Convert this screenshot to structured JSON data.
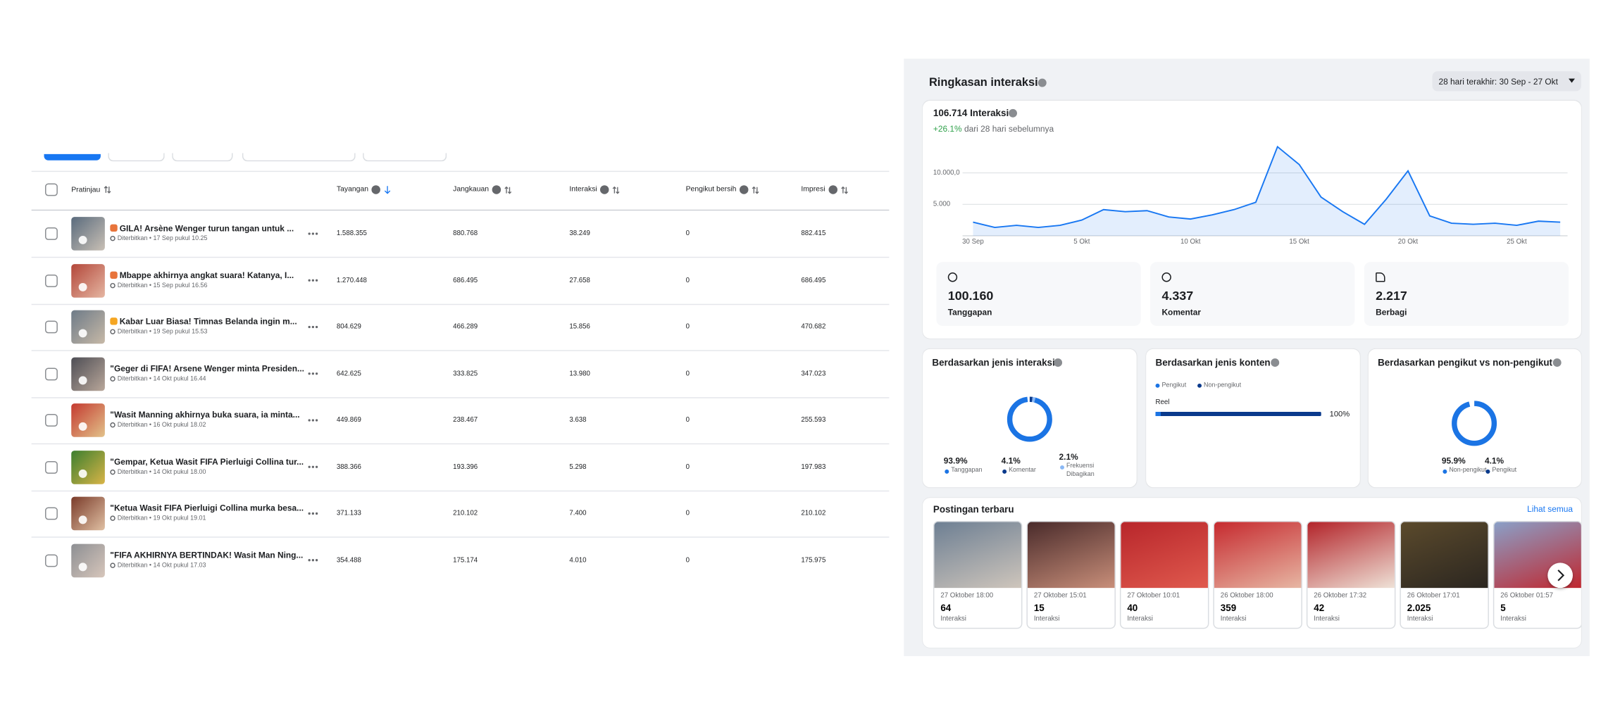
{
  "table": {
    "columns": [
      "Pratinjau",
      "Tayangan",
      "Jangkauan",
      "Interaksi",
      "Pengikut bersih",
      "Impresi"
    ],
    "rows": [
      {
        "title": "GILA! Arsène Wenger turun tangan untuk ...",
        "published": "Diterbitkan • 17 Sep pukul 10.25",
        "values": [
          "1.588.355",
          "880.768",
          "38.249",
          "0",
          "882.415"
        ]
      },
      {
        "title": "Mbappe akhirnya angkat suara! Katanya, I...",
        "published": "Diterbitkan • 15 Sep pukul 16.56",
        "values": [
          "1.270.448",
          "686.495",
          "27.658",
          "0",
          "686.495"
        ]
      },
      {
        "title": "Kabar Luar Biasa! Timnas Belanda ingin m...",
        "published": "Diterbitkan • 19 Sep pukul 15.53",
        "values": [
          "804.629",
          "466.289",
          "15.856",
          "0",
          "470.682"
        ]
      },
      {
        "title": "\"Geger di FIFA! Arsene Wenger minta Presiden...",
        "published": "Diterbitkan • 14 Okt pukul 16.44",
        "values": [
          "642.625",
          "333.825",
          "13.980",
          "0",
          "347.023"
        ]
      },
      {
        "title": "\"Wasit Manning akhirnya buka suara, ia minta...",
        "published": "Diterbitkan • 16 Okt pukul 18.02",
        "values": [
          "449.869",
          "238.467",
          "3.638",
          "0",
          "255.593"
        ]
      },
      {
        "title": "\"Gempar, Ketua Wasit FIFA Pierluigi Collina tur...",
        "published": "Diterbitkan • 14 Okt pukul 18.00",
        "values": [
          "388.366",
          "193.396",
          "5.298",
          "0",
          "197.983"
        ]
      },
      {
        "title": "\"Ketua Wasit FIFA Pierluigi Collina murka besa...",
        "published": "Diterbitkan • 19 Okt pukul 19.01",
        "values": [
          "371.133",
          "210.102",
          "7.400",
          "0",
          "210.102"
        ]
      },
      {
        "title": "\"FIFA AKHIRNYA BERTINDAK! Wasit Man Ning...",
        "published": "Diterbitkan • 14 Okt pukul 17.03",
        "values": [
          "354.488",
          "175.174",
          "4.010",
          "0",
          "175.975"
        ]
      }
    ]
  },
  "summary": {
    "title": "Ringkasan interaksi",
    "date_range": "28 hari terakhir: 30 Sep - 27 Okt",
    "total": "106.714 Interaksi",
    "change": "+26.1%",
    "change_note": "dari 28 hari sebelumnya",
    "chart": {
      "type": "line",
      "color": "#1877f2",
      "categories": [
        "30 Sep",
        null,
        null,
        null,
        null,
        "5 Okt",
        null,
        null,
        null,
        null,
        "10 Okt",
        null,
        null,
        null,
        null,
        "15 Okt",
        null,
        null,
        null,
        null,
        "20 Okt",
        null,
        null,
        null,
        null,
        "25 Okt",
        null,
        null
      ],
      "values": [
        2167,
        1333,
        1667,
        1333,
        1667,
        2500,
        4167,
        3833,
        4000,
        3000,
        2667,
        3333,
        4167,
        5333,
        14167,
        11333,
        6167,
        3833,
        1833,
        5833,
        10333,
        3167,
        2000,
        1833,
        2000,
        1667,
        2333,
        2167
      ],
      "ylim": [
        0,
        15000
      ],
      "yticks": [
        {
          "value": 5000,
          "label": "5.000"
        },
        {
          "value": 10000,
          "label": "10.000,0"
        }
      ],
      "grid": true
    },
    "stats": [
      {
        "value": "100.160",
        "label": "Tanggapan"
      },
      {
        "value": "4.337",
        "label": "Komentar"
      },
      {
        "value": "2.217",
        "label": "Berbagi"
      }
    ]
  },
  "breakdowns": [
    {
      "title": "Berdasarkan jenis interaksi",
      "segments": [
        {
          "value": 93.9,
          "label": "93.9%",
          "name": "Tanggapan",
          "color": "#1b74e4"
        },
        {
          "value": 4.1,
          "label": "4.1%",
          "name": "Komentar",
          "color": "#0a3a8c"
        },
        {
          "value": 2.1,
          "label": "2.1%",
          "name": "Frekuensi Dibagikan",
          "color": "#8ab8f5"
        }
      ]
    },
    {
      "title": "Berdasarkan jenis konten",
      "legend": [
        {
          "name": "Pengikut",
          "color": "#1b74e4"
        },
        {
          "name": "Non-pengikut",
          "color": "#0a3a8c"
        }
      ],
      "bars": [
        {
          "name": "Reel",
          "value": 100,
          "label": "100%",
          "color": "#0a3a8c"
        }
      ]
    },
    {
      "title": "Berdasarkan pengikut vs non-pengikut",
      "segments": [
        {
          "value": 95.9,
          "label": "95.9%",
          "name": "Non-pengikut",
          "color": "#1b74e4"
        },
        {
          "value": 4.1,
          "label": "4.1%",
          "name": "Pengikut",
          "color": "#0a3a8c"
        }
      ]
    }
  ],
  "recent": {
    "title": "Postingan terbaru",
    "link": "Lihat semua",
    "posts": [
      {
        "date": "27 Oktober 18:00",
        "count": "64",
        "label": "Interaksi"
      },
      {
        "date": "27 Oktober 15:01",
        "count": "15",
        "label": "Interaksi"
      },
      {
        "date": "27 Oktober 10:01",
        "count": "40",
        "label": "Interaksi"
      },
      {
        "date": "26 Oktober 18:00",
        "count": "359",
        "label": "Interaksi"
      },
      {
        "date": "26 Oktober 17:32",
        "count": "42",
        "label": "Interaksi"
      },
      {
        "date": "26 Oktober 17:01",
        "count": "2.025",
        "label": "Interaksi"
      },
      {
        "date": "26 Oktober 01:57",
        "count": "5",
        "label": "Interaksi"
      }
    ]
  }
}
